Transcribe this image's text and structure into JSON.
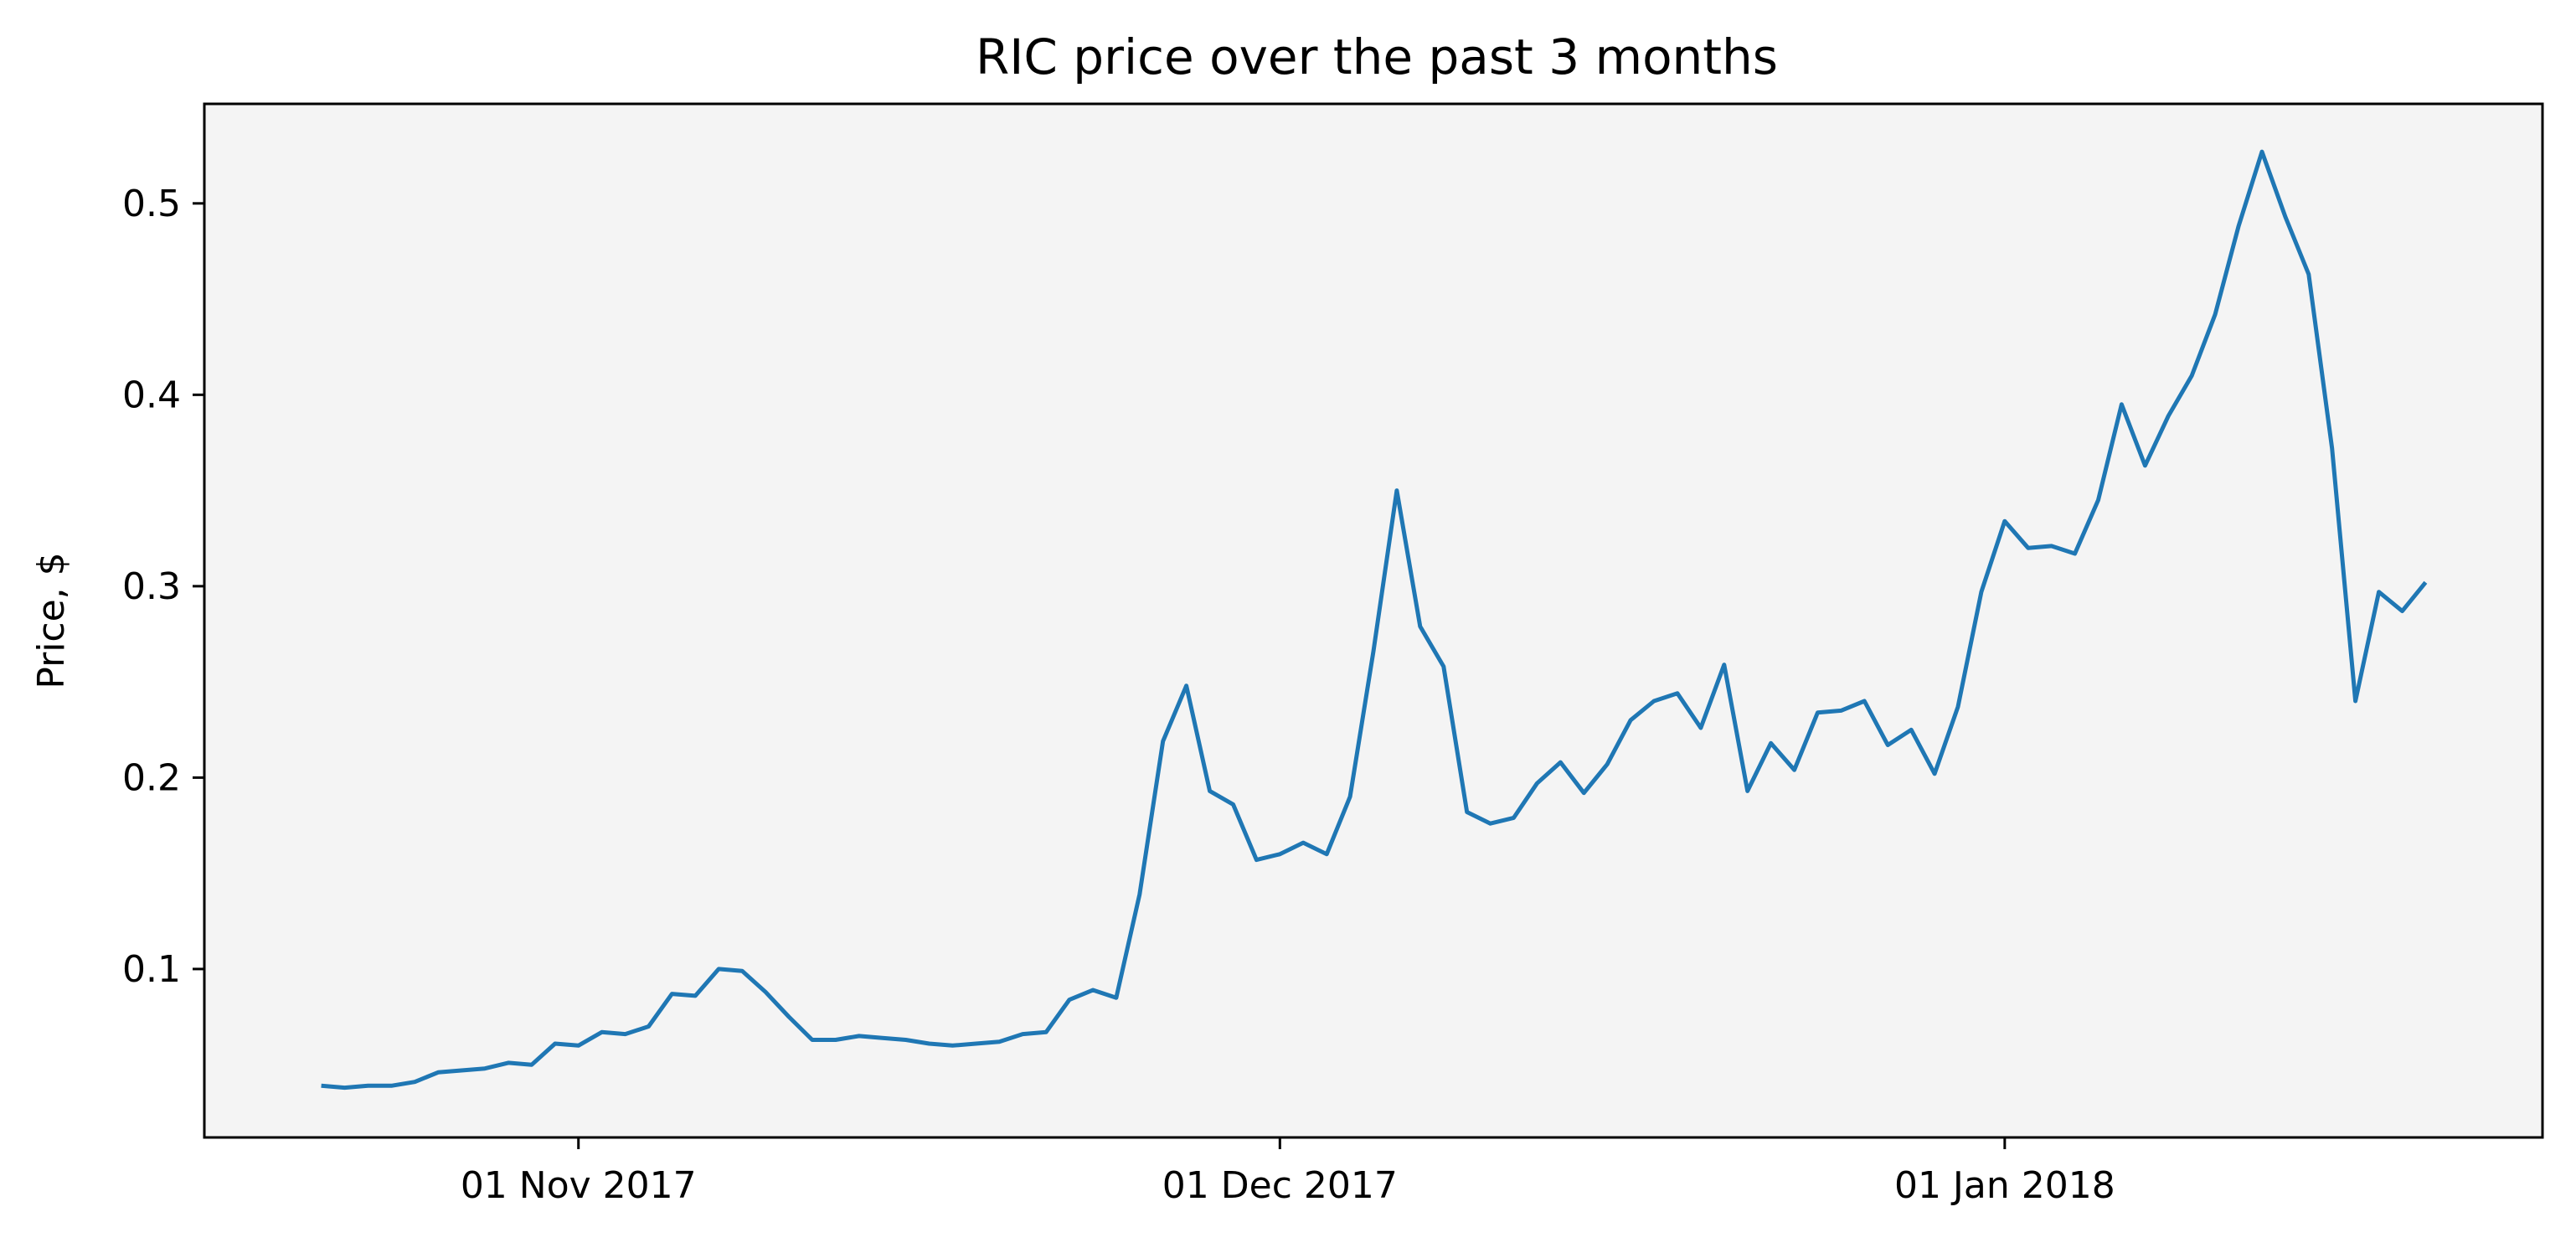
{
  "chart_data": {
    "type": "line",
    "title": "RIC price over the past 3 months",
    "xlabel": "",
    "ylabel": "Price, $",
    "x_start": "2017-10-21",
    "x_step_days": 1,
    "xlim": [
      "2017-10-16",
      "2018-01-24"
    ],
    "ylim": [
      0.012,
      0.552
    ],
    "x_ticks": [
      {
        "date": "2017-11-01",
        "label": "01 Nov 2017"
      },
      {
        "date": "2017-12-01",
        "label": "01 Dec 2017"
      },
      {
        "date": "2018-01-01",
        "label": "01 Jan 2018"
      }
    ],
    "y_ticks": [
      {
        "value": 0.1,
        "label": "0.1"
      },
      {
        "value": 0.2,
        "label": "0.2"
      },
      {
        "value": 0.3,
        "label": "0.3"
      },
      {
        "value": 0.4,
        "label": "0.4"
      },
      {
        "value": 0.5,
        "label": "0.5"
      }
    ],
    "grid": false,
    "background": "#f4f4f4",
    "line_color": "#1f77b4",
    "series": [
      {
        "name": "",
        "values": [
          0.039,
          0.038,
          0.039,
          0.039,
          0.041,
          0.046,
          0.047,
          0.048,
          0.051,
          0.05,
          0.061,
          0.06,
          0.067,
          0.066,
          0.07,
          0.087,
          0.086,
          0.1,
          0.099,
          0.088,
          0.075,
          0.063,
          0.063,
          0.065,
          0.064,
          0.063,
          0.061,
          0.06,
          0.061,
          0.062,
          0.066,
          0.067,
          0.084,
          0.089,
          0.085,
          0.139,
          0.219,
          0.248,
          0.193,
          0.186,
          0.157,
          0.16,
          0.166,
          0.16,
          0.19,
          0.266,
          0.35,
          0.279,
          0.258,
          0.182,
          0.176,
          0.179,
          0.197,
          0.208,
          0.192,
          0.207,
          0.23,
          0.24,
          0.244,
          0.226,
          0.259,
          0.193,
          0.218,
          0.204,
          0.234,
          0.235,
          0.24,
          0.217,
          0.225,
          0.202,
          0.237,
          0.297,
          0.334,
          0.32,
          0.321,
          0.317,
          0.345,
          0.395,
          0.363,
          0.389,
          0.41,
          0.442,
          0.488,
          0.527,
          0.493,
          0.463,
          0.372,
          0.24,
          0.297,
          0.287,
          0.302
        ]
      }
    ]
  }
}
